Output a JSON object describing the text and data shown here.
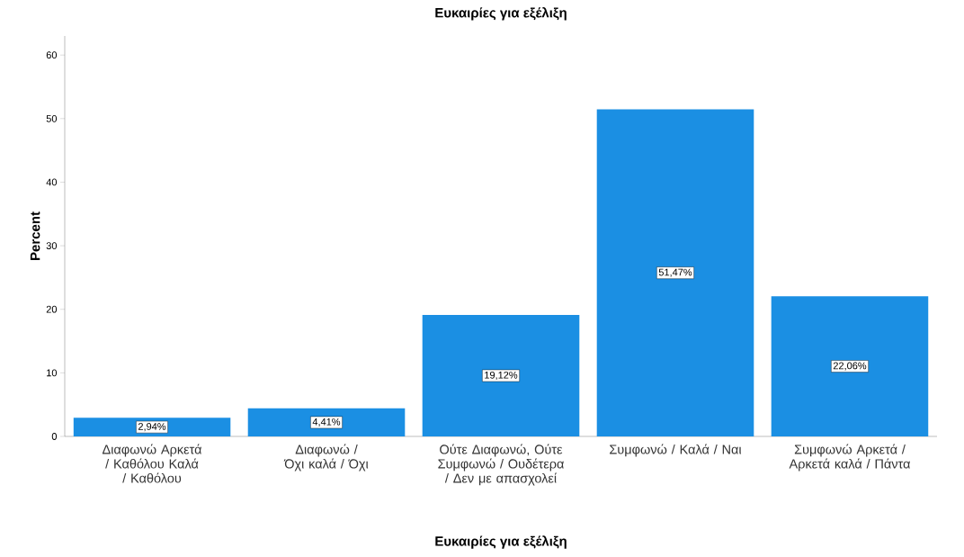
{
  "chart_data": {
    "type": "bar",
    "title": "Ευκαιρίες για εξέλιξη",
    "xlabel": "Ευκαιρίες για εξέλιξη",
    "ylabel": "Percent",
    "categories": [
      "Διαφωνώ Αρκετά / Καθόλου Καλά / Καθόλου",
      "Διαφωνώ / Όχι καλά / Όχι",
      "Ούτε Διαφωνώ, Ούτε Συμφωνώ / Ουδέτερα / Δεν με απασχολεί",
      "Συμφωνώ / Καλά / Ναι",
      "Συμφωνώ Αρκετά / Αρκετά καλά / Πάντα"
    ],
    "values": [
      2.94,
      4.41,
      19.12,
      51.47,
      22.06
    ],
    "value_labels": [
      "2,94%",
      "4,41%",
      "19,12%",
      "51,47%",
      "22,06%"
    ],
    "color": "#1b8fe3",
    "ylim": [
      0,
      63
    ],
    "yticks": [
      0,
      10,
      20,
      30,
      40,
      50,
      60
    ],
    "grid": false
  }
}
